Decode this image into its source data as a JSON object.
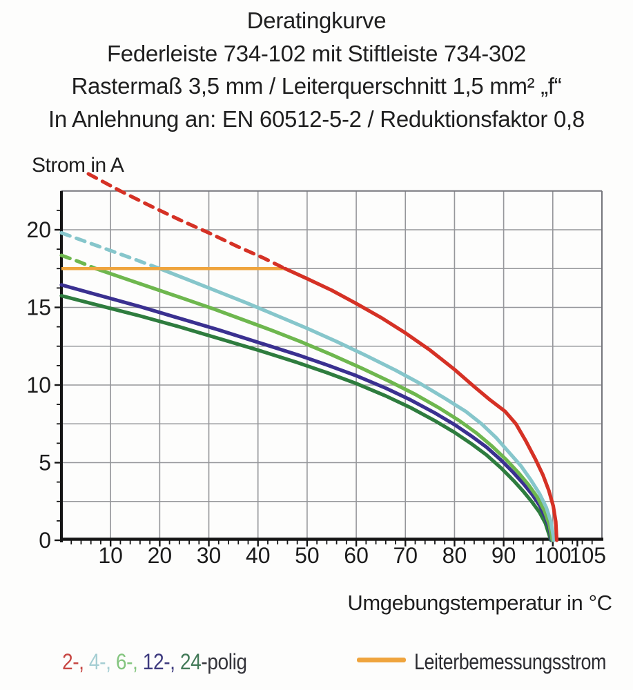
{
  "title": {
    "line1": "Deratingkurve",
    "line2": "Federleiste 734-102 mit Stiftleiste 734-302",
    "line3": "Rastermaß 3,5 mm / Leiterquerschnitt 1,5 mm² „f“",
    "line4": "In Anlehnung an: EN 60512-5-2 / Reduktionsfaktor 0,8"
  },
  "legend": {
    "pole_segments": [
      {
        "text": "2-, ",
        "color": "#c74743"
      },
      {
        "text": "4-, ",
        "color": "#a5ced3"
      },
      {
        "text": "6-, ",
        "color": "#84c57f"
      },
      {
        "text": "12-, ",
        "color": "#3d3a7e"
      },
      {
        "text": "24",
        "color": "#437a58"
      },
      {
        "text": "-polig",
        "color": "#35353b"
      }
    ],
    "reference_label": "Leiterbemessungsstrom",
    "reference_color": "#efa43d"
  },
  "chart_data": {
    "type": "line",
    "title": "Deratingkurve",
    "xlabel": "Umgebungstemperatur in °C",
    "ylabel": "Strom in A",
    "xlim": [
      0,
      110
    ],
    "ylim": [
      0,
      22.5
    ],
    "grid": "on",
    "x_major_ticks": [
      10,
      20,
      30,
      40,
      50,
      60,
      70,
      80,
      90,
      100,
      105
    ],
    "y_major_ticks": [
      0,
      5,
      10,
      15,
      20
    ],
    "x_grid_step": 10,
    "y_grid_step": 2.5,
    "x_minor_step": 2,
    "y_minor_step": 1.25,
    "colors": {
      "grid": "#95969a",
      "border": "#74757b",
      "axis": "#151515",
      "text": "#1c1c1c"
    },
    "reference_line": {
      "name": "Leiterbemessungsstrom",
      "color": "#efa43d",
      "y": 17.5,
      "x_start": 0,
      "x_end": 45.5
    },
    "series": [
      {
        "name": "2-polig",
        "color": "#d53125",
        "dashed_until_x": 45.5,
        "points": [
          [
            5.5,
            23.6
          ],
          [
            12,
            22.5
          ],
          [
            18,
            21.55
          ],
          [
            24,
            20.65
          ],
          [
            30,
            19.8
          ],
          [
            36,
            18.9
          ],
          [
            41,
            18.2
          ],
          [
            45.5,
            17.5
          ],
          [
            50,
            16.85
          ],
          [
            55,
            16.1
          ],
          [
            60,
            15.25
          ],
          [
            65,
            14.35
          ],
          [
            70,
            13.35
          ],
          [
            75,
            12.25
          ],
          [
            80,
            11.0
          ],
          [
            84,
            9.9
          ],
          [
            87,
            9.1
          ],
          [
            90.3,
            8.3
          ],
          [
            92.5,
            7.5
          ],
          [
            94.5,
            6.4
          ],
          [
            96.5,
            5.2
          ],
          [
            98,
            4.2
          ],
          [
            99.2,
            3.2
          ],
          [
            100.1,
            2.2
          ],
          [
            100.6,
            1.2
          ],
          [
            100.8,
            0
          ]
        ]
      },
      {
        "name": "4-polig",
        "color": "#86c6cb",
        "dashed_until_x": 20,
        "points": [
          [
            0,
            19.8
          ],
          [
            7,
            19.0
          ],
          [
            14,
            18.2
          ],
          [
            20,
            17.5
          ],
          [
            26,
            16.75
          ],
          [
            32,
            16.0
          ],
          [
            38,
            15.25
          ],
          [
            44,
            14.45
          ],
          [
            50,
            13.65
          ],
          [
            56,
            12.8
          ],
          [
            62,
            11.9
          ],
          [
            68,
            10.95
          ],
          [
            73,
            10.1
          ],
          [
            78,
            9.15
          ],
          [
            82.3,
            8.3
          ],
          [
            85.5,
            7.5
          ],
          [
            88.5,
            6.6
          ],
          [
            91,
            5.7
          ],
          [
            93.5,
            4.8
          ],
          [
            95.5,
            3.9
          ],
          [
            97.3,
            3.0
          ],
          [
            98.7,
            2.1
          ],
          [
            99.6,
            1.2
          ],
          [
            100.1,
            0.3
          ],
          [
            100.2,
            0
          ]
        ]
      },
      {
        "name": "6-polig",
        "color": "#6eb74e",
        "dashed_until_x": 7,
        "points": [
          [
            0,
            18.35
          ],
          [
            3.5,
            17.95
          ],
          [
            7,
            17.5
          ],
          [
            13,
            16.85
          ],
          [
            19,
            16.2
          ],
          [
            25,
            15.55
          ],
          [
            31,
            14.9
          ],
          [
            37,
            14.2
          ],
          [
            43,
            13.5
          ],
          [
            49,
            12.75
          ],
          [
            55,
            11.95
          ],
          [
            61,
            11.1
          ],
          [
            67,
            10.2
          ],
          [
            72,
            9.4
          ],
          [
            77,
            8.5
          ],
          [
            81,
            7.7
          ],
          [
            84.5,
            6.9
          ],
          [
            87.5,
            6.1
          ],
          [
            90.5,
            5.2
          ],
          [
            93,
            4.35
          ],
          [
            95,
            3.6
          ],
          [
            96.8,
            2.8
          ],
          [
            98.3,
            1.9
          ],
          [
            99.3,
            1.0
          ],
          [
            99.9,
            0
          ]
        ]
      },
      {
        "name": "12-polig",
        "color": "#3a3090",
        "dashed_until_x": 0,
        "points": [
          [
            0,
            16.45
          ],
          [
            8,
            15.75
          ],
          [
            16,
            15.05
          ],
          [
            24,
            14.3
          ],
          [
            32,
            13.55
          ],
          [
            40,
            12.75
          ],
          [
            48,
            11.95
          ],
          [
            54,
            11.3
          ],
          [
            60,
            10.6
          ],
          [
            66,
            9.8
          ],
          [
            71,
            9.05
          ],
          [
            76,
            8.2
          ],
          [
            80,
            7.45
          ],
          [
            83.5,
            6.7
          ],
          [
            86.5,
            6.0
          ],
          [
            89.5,
            5.15
          ],
          [
            92,
            4.35
          ],
          [
            94,
            3.65
          ],
          [
            95.8,
            2.95
          ],
          [
            97.3,
            2.25
          ],
          [
            98.5,
            1.5
          ],
          [
            99.3,
            0.8
          ],
          [
            99.75,
            0
          ]
        ]
      },
      {
        "name": "24-polig",
        "color": "#2e7c3e",
        "dashed_until_x": 0,
        "points": [
          [
            0,
            15.75
          ],
          [
            8,
            15.1
          ],
          [
            16,
            14.45
          ],
          [
            24,
            13.75
          ],
          [
            32,
            13.0
          ],
          [
            40,
            12.25
          ],
          [
            48,
            11.45
          ],
          [
            54,
            10.8
          ],
          [
            60,
            10.1
          ],
          [
            66,
            9.3
          ],
          [
            71,
            8.55
          ],
          [
            76,
            7.7
          ],
          [
            80,
            6.95
          ],
          [
            83.5,
            6.2
          ],
          [
            86.5,
            5.5
          ],
          [
            89.5,
            4.65
          ],
          [
            92,
            3.85
          ],
          [
            94,
            3.15
          ],
          [
            95.8,
            2.45
          ],
          [
            97.3,
            1.8
          ],
          [
            98.5,
            1.1
          ],
          [
            99.6,
            0
          ]
        ]
      }
    ]
  }
}
